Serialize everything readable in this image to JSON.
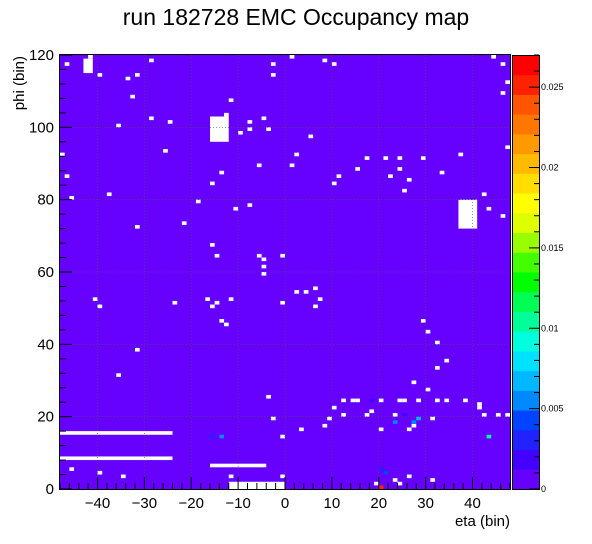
{
  "chart_data": {
    "type": "heatmap",
    "title": "run 182728 EMC  Occupancy map",
    "xlabel": "eta (bin)",
    "ylabel": "phi (bin)",
    "xlim": [
      -48,
      48
    ],
    "ylim": [
      0,
      120
    ],
    "x_ticks": [
      -40,
      -30,
      -20,
      -10,
      0,
      10,
      20,
      30,
      40
    ],
    "y_ticks": [
      0,
      20,
      40,
      60,
      80,
      100,
      120
    ],
    "zlim": [
      0,
      0.027
    ],
    "z_ticks": [
      0,
      0.005,
      0.01,
      0.015,
      0.02,
      0.025
    ],
    "z_tick_labels": [
      "0",
      "0.005",
      "0.01",
      "0.015",
      "0.02",
      "0.025"
    ],
    "background_value": 0.0006,
    "grid": true,
    "palette": [
      "#6600ff",
      "#4400ff",
      "#2222ff",
      "#0044ff",
      "#0088ff",
      "#00b8ff",
      "#00e0ff",
      "#00ffdd",
      "#00ff99",
      "#00ff55",
      "#00ff00",
      "#44ff00",
      "#99ff00",
      "#ddff00",
      "#ffff00",
      "#ffdd00",
      "#ffbb00",
      "#ff9900",
      "#ff7700",
      "#ff5500",
      "#ff2200",
      "#ff0000"
    ],
    "empty_regions": [
      {
        "eta": [
          -48,
          -24
        ],
        "phi": [
          15,
          16
        ]
      },
      {
        "eta": [
          -48,
          -24
        ],
        "phi": [
          8,
          9
        ]
      },
      {
        "eta": [
          -16,
          -12
        ],
        "phi": [
          96,
          103
        ]
      },
      {
        "eta": [
          37,
          41
        ],
        "phi": [
          72,
          80
        ]
      },
      {
        "eta": [
          -16,
          -4
        ],
        "phi": [
          6,
          7
        ]
      },
      {
        "eta": [
          -12,
          0
        ],
        "phi": [
          0,
          2
        ]
      },
      {
        "eta": [
          -43,
          -41
        ],
        "phi": [
          115,
          119
        ]
      }
    ],
    "dead_cells": [
      [
        -47,
        117
      ],
      [
        -42,
        119
      ],
      [
        -40,
        114
      ],
      [
        -34,
        113
      ],
      [
        -32,
        114
      ],
      [
        -29,
        118
      ],
      [
        -33,
        108
      ],
      [
        -36,
        100
      ],
      [
        -29,
        102
      ],
      [
        -25,
        101
      ],
      [
        -26,
        93
      ],
      [
        -48,
        92
      ],
      [
        -47,
        86
      ],
      [
        -46,
        80
      ],
      [
        -38,
        81
      ],
      [
        -32,
        72
      ],
      [
        -22,
        73
      ],
      [
        -19,
        79
      ],
      [
        -16,
        84
      ],
      [
        -14,
        87
      ],
      [
        -13,
        103
      ],
      [
        -12,
        107
      ],
      [
        -10,
        98
      ],
      [
        -8,
        101
      ],
      [
        -8,
        99
      ],
      [
        -5,
        102
      ],
      [
        -4,
        99
      ],
      [
        -6,
        89
      ],
      [
        -8,
        78
      ],
      [
        -11,
        77
      ],
      [
        -16,
        67
      ],
      [
        -15,
        64
      ],
      [
        -6,
        64
      ],
      [
        -5,
        63
      ],
      [
        -5,
        61
      ],
      [
        -5,
        59
      ],
      [
        -16,
        50
      ],
      [
        -15,
        51
      ],
      [
        -14,
        46
      ],
      [
        -13,
        45
      ],
      [
        -12,
        52
      ],
      [
        -1,
        64
      ],
      [
        -1,
        51
      ],
      [
        2,
        54
      ],
      [
        4,
        54
      ],
      [
        6,
        55
      ],
      [
        7,
        52
      ],
      [
        6,
        50
      ],
      [
        -24,
        51
      ],
      [
        -40,
        50
      ],
      [
        -41,
        52
      ],
      [
        -32,
        38
      ],
      [
        -36,
        31
      ],
      [
        -17,
        52
      ],
      [
        -3,
        117
      ],
      [
        -3,
        114
      ],
      [
        1,
        119
      ],
      [
        8,
        118
      ],
      [
        10,
        117
      ],
      [
        5,
        97
      ],
      [
        2,
        92
      ],
      [
        1,
        89
      ],
      [
        10,
        84
      ],
      [
        11,
        86
      ],
      [
        15,
        88
      ],
      [
        17,
        91
      ],
      [
        21,
        91
      ],
      [
        24,
        91
      ],
      [
        24,
        88
      ],
      [
        25,
        82
      ],
      [
        26,
        85
      ],
      [
        33,
        87
      ],
      [
        37,
        92
      ],
      [
        42,
        81
      ],
      [
        47,
        94
      ],
      [
        44,
        119
      ],
      [
        46,
        117
      ],
      [
        47,
        112
      ],
      [
        46,
        109
      ],
      [
        43,
        77
      ],
      [
        46,
        75
      ],
      [
        22,
        86
      ],
      [
        29,
        91
      ],
      [
        29,
        46
      ],
      [
        30,
        43
      ],
      [
        32,
        40
      ],
      [
        32,
        33
      ],
      [
        34,
        35
      ],
      [
        30,
        27
      ],
      [
        27,
        29
      ],
      [
        20,
        24
      ],
      [
        24,
        24
      ],
      [
        25,
        24
      ],
      [
        14,
        24
      ],
      [
        12,
        24
      ],
      [
        10,
        22
      ],
      [
        9,
        19
      ],
      [
        8,
        17
      ],
      [
        3,
        16
      ],
      [
        -1,
        14
      ],
      [
        -3,
        19
      ],
      [
        12,
        20
      ],
      [
        17,
        20
      ],
      [
        18,
        21
      ],
      [
        20,
        16
      ],
      [
        26,
        16
      ],
      [
        27,
        17
      ],
      [
        31,
        19
      ],
      [
        32,
        24
      ],
      [
        38,
        24
      ],
      [
        41,
        22
      ],
      [
        42,
        20
      ],
      [
        47,
        20
      ],
      [
        41,
        23
      ],
      [
        23,
        20
      ],
      [
        28,
        24
      ],
      [
        34,
        24
      ],
      [
        -35,
        3
      ],
      [
        -40,
        4
      ],
      [
        -46,
        5
      ],
      [
        26,
        3
      ],
      [
        19,
        1
      ],
      [
        24,
        1
      ],
      [
        23,
        2
      ],
      [
        -1,
        3
      ],
      [
        31,
        2
      ],
      [
        -12,
        3
      ],
      [
        -4,
        25
      ],
      [
        15,
        24
      ],
      [
        45,
        20
      ]
    ],
    "hot_cells": [
      {
        "eta": 20,
        "phi": 0,
        "value": 0.025
      },
      {
        "eta": 21,
        "phi": 4,
        "value": 0.004
      },
      {
        "eta": 20,
        "phi": 5,
        "value": 0.003
      },
      {
        "eta": 18,
        "phi": 24,
        "value": 0.002
      },
      {
        "eta": 23,
        "phi": 18,
        "value": 0.005
      },
      {
        "eta": 25,
        "phi": 20,
        "value": 0.002
      },
      {
        "eta": 27,
        "phi": 18,
        "value": 0.005
      },
      {
        "eta": 28,
        "phi": 19,
        "value": 0.007
      },
      {
        "eta": -14,
        "phi": 14,
        "value": 0.006
      },
      {
        "eta": 43,
        "phi": 14,
        "value": 0.011
      },
      {
        "eta": -16,
        "phi": 14,
        "value": 0.003
      }
    ]
  }
}
